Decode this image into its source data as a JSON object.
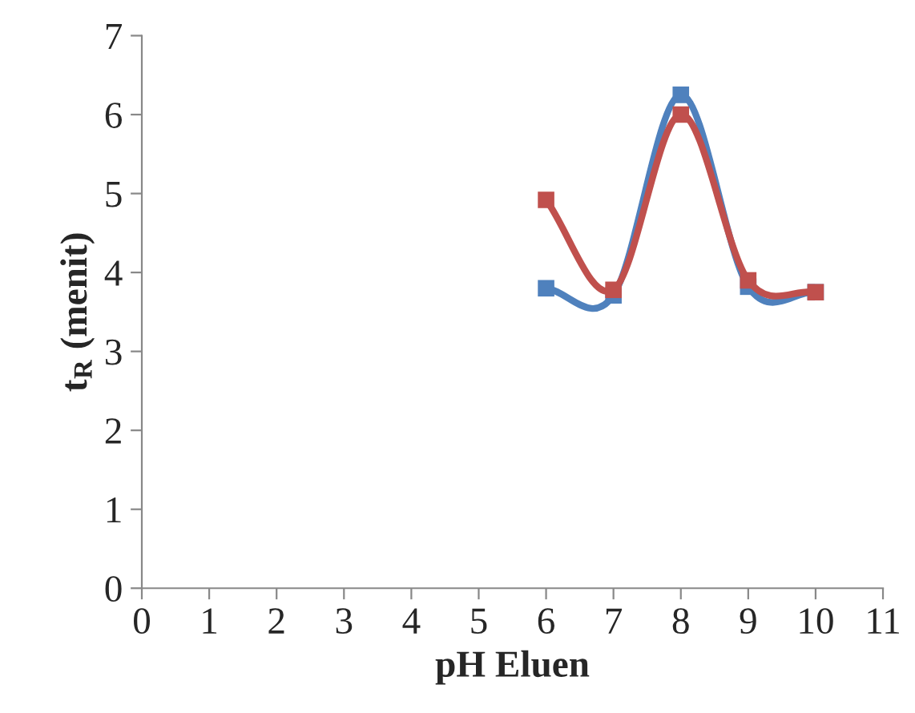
{
  "chart_data": {
    "type": "line",
    "xlabel": "pH Eluen",
    "ylabel": "t$_{R}$ (menit)",
    "xlim": [
      0,
      11
    ],
    "xticks": [
      0,
      1,
      2,
      3,
      4,
      5,
      6,
      7,
      8,
      9,
      10,
      11
    ],
    "ylim": [
      0,
      7
    ],
    "yticks": [
      0,
      1,
      2,
      3,
      4,
      5,
      6,
      7
    ],
    "grid": false,
    "legend": false,
    "marker": "square",
    "line_style": "solid",
    "series": [
      {
        "color": "#4f81bd",
        "x": [
          6,
          7,
          8,
          9,
          10
        ],
        "values": [
          3.8,
          3.71,
          6.25,
          3.82,
          3.75
        ]
      },
      {
        "color": "#c0504d",
        "x": [
          6,
          7,
          8,
          9,
          10
        ],
        "values": [
          4.92,
          3.78,
          6.0,
          3.9,
          3.75
        ]
      }
    ]
  }
}
